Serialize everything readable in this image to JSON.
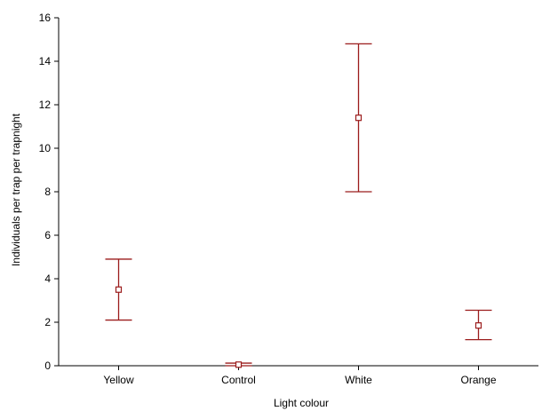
{
  "chart_data": {
    "type": "scatter",
    "title": "",
    "xlabel": "Light colour",
    "ylabel": "Individuals per trap per trapnight",
    "categories": [
      "Yellow",
      "Control",
      "White",
      "Orange"
    ],
    "series": [
      {
        "values": [
          3.5,
          0.05,
          11.4,
          1.85
        ],
        "lower": [
          2.1,
          0.0,
          8.0,
          1.2
        ],
        "upper": [
          4.9,
          0.12,
          14.8,
          2.55
        ]
      }
    ],
    "ylim": [
      0,
      16
    ],
    "yticks": [
      "0",
      "2",
      "4",
      "6",
      "8",
      "10",
      "12",
      "14",
      "16"
    ],
    "grid": false,
    "legend": "none",
    "colors": {
      "series": "#9b1c1c",
      "axis": "#000000"
    }
  }
}
